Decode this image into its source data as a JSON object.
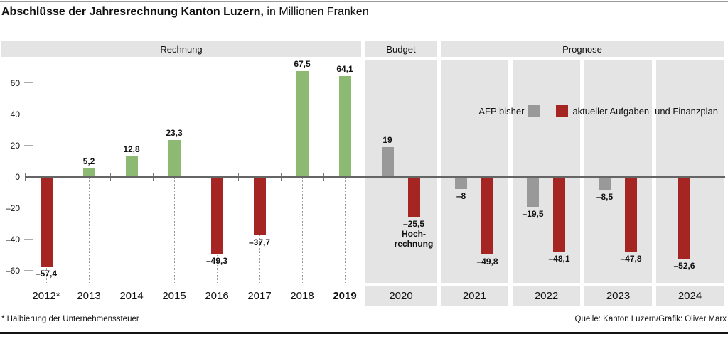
{
  "title": {
    "bold": "Abschlüsse der Jahresrechnung Kanton Luzern,",
    "rest": "in Millionen Franken"
  },
  "footnote": "* Halbierung der Unternehmenssteuer",
  "source": "Quelle: Kanton Luzern/Grafik: Oliver Marx",
  "colors": {
    "green": "#8cba73",
    "red": "#a52522",
    "gray": "#999999",
    "panel": "#e4e4e4",
    "axis": "#656565"
  },
  "chart_data": {
    "type": "bar",
    "title": "Abschlüsse der Jahresrechnung Kanton Luzern, in Millionen Franken",
    "unit": "Millionen Franken",
    "ylim": [
      -68,
      74
    ],
    "yticks": [
      60,
      40,
      20,
      0,
      -20,
      -40,
      -60
    ],
    "grid": "dotted vertical guides below zero line in Rechnung section",
    "legend": [
      {
        "name": "AFP bisher",
        "color": "#999999"
      },
      {
        "name": "aktueller Aufgaben- und Finanzplan",
        "color": "#a52522"
      }
    ],
    "sections": [
      {
        "label": "Rechnung",
        "years": [
          {
            "year": "2012*",
            "value": -57.4,
            "label": "–57,4"
          },
          {
            "year": "2013",
            "value": 5.2,
            "label": "5,2"
          },
          {
            "year": "2014",
            "value": 12.8,
            "label": "12,8"
          },
          {
            "year": "2015",
            "value": 23.3,
            "label": "23,3"
          },
          {
            "year": "2016",
            "value": -49.3,
            "label": "–49,3"
          },
          {
            "year": "2017",
            "value": -37.7,
            "label": "–37,7"
          },
          {
            "year": "2018",
            "value": 67.5,
            "label": "67,5"
          },
          {
            "year": "2019",
            "value": 64.1,
            "label": "64,1",
            "bold": true
          }
        ]
      },
      {
        "label": "Budget",
        "years": [
          {
            "year": "2020",
            "afp": 19,
            "afp_label": "19",
            "plan": -25.5,
            "plan_label": "–25,5",
            "note": [
              "Hoch-",
              "rechnung"
            ]
          }
        ]
      },
      {
        "label": "Prognose",
        "years": [
          {
            "year": "2021",
            "afp": -8,
            "afp_label": "–8",
            "plan": -49.8,
            "plan_label": "–49,8"
          },
          {
            "year": "2022",
            "afp": -19.5,
            "afp_label": "–19,5",
            "plan": -48.1,
            "plan_label": "–48,1"
          },
          {
            "year": "2023",
            "afp": -8.5,
            "afp_label": "–8,5",
            "plan": -47.8,
            "plan_label": "–47,8"
          },
          {
            "year": "2024",
            "plan": -52.6,
            "plan_label": "–52,6"
          }
        ]
      }
    ]
  }
}
